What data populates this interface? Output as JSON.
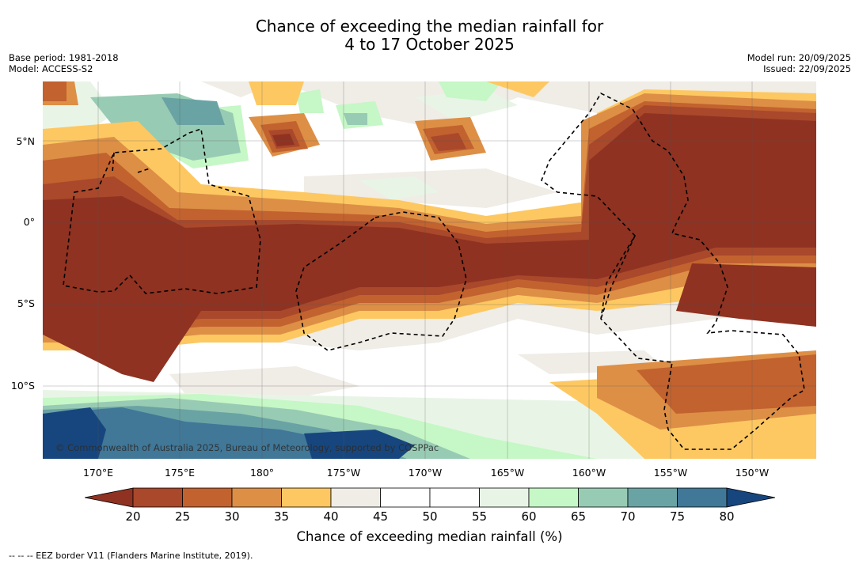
{
  "title": {
    "line1": "Chance of exceeding the median rainfall for",
    "line2": "4 to 17 October 2025"
  },
  "meta_left": {
    "base_period": "Base period: 1981-2018",
    "model": "Model: ACCESS-S2"
  },
  "meta_right": {
    "model_run": "Model run: 20/09/2025",
    "issued": "Issued: 22/09/2025"
  },
  "map": {
    "lon_labels": [
      "170°E",
      "175°E",
      "180°",
      "175°W",
      "170°W",
      "165°W",
      "160°W",
      "155°W",
      "150°W"
    ],
    "lat_labels": [
      "5°N",
      "0°",
      "5°S",
      "10°S"
    ],
    "copyright": "© Commonwealth of Australia 2025, Bureau of Meteorology, supported by COSPPac",
    "gridlines": true
  },
  "colorbar": {
    "labels": [
      "20",
      "25",
      "30",
      "35",
      "40",
      "45",
      "50",
      "55",
      "60",
      "65",
      "70",
      "75",
      "80"
    ],
    "colors": [
      "#8f3221",
      "#a9482b",
      "#c2622f",
      "#dd8f46",
      "#fdc862",
      "#f0ece6",
      "#ffffff",
      "#ffffff",
      "#e8f5e6",
      "#c6f7c6",
      "#98cbb3",
      "#6aa3a4",
      "#417797",
      "#17467e"
    ],
    "title": "Chance of exceeding median rainfall (%)"
  },
  "legend_note": "--  --  -- EEZ border V11 (Flanders Marine Institute, 2019)."
}
